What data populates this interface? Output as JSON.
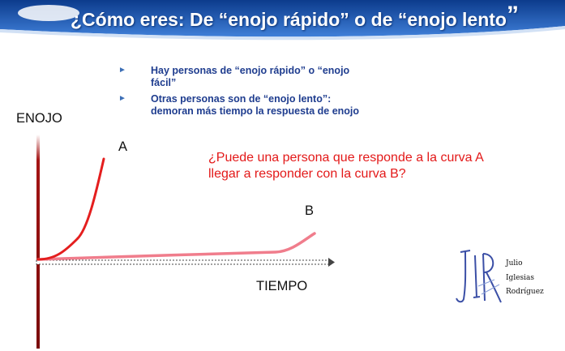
{
  "slide": {
    "title_main": "¿Cómo eres: De “enojo rápido” o de “enojo lento",
    "title_close": "”",
    "bullets": [
      {
        "text": "Hay personas de “enojo rápido” o “enojo fácil”"
      },
      {
        "text": "Otras personas son de “enojo lento”: demoran más tiempo la respuesta de enojo"
      }
    ],
    "question": "¿Puede una persona que responde a la curva A llegar a responder con la curva B?"
  },
  "chart_data": {
    "type": "line",
    "ylabel": "ENOJO",
    "xlabel": "TIEMPO",
    "series": [
      {
        "name": "A",
        "color": "#e41e1e"
      },
      {
        "name": "B",
        "color": "#f07d8c"
      }
    ]
  },
  "logo": {
    "monogram": "JIR",
    "name_lines": [
      "Julio",
      "Iglesias",
      "Rodríguez"
    ]
  },
  "colors": {
    "banner_top": "#0c3b8c",
    "banner_bottom": "#3f7fd8",
    "bullet_text": "#1f3d8f",
    "question_text": "#e31919"
  }
}
